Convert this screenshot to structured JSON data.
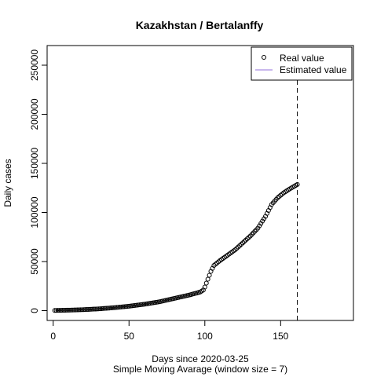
{
  "chart_data": {
    "type": "scatter",
    "title": "Kazakhstan / Bertalanffy",
    "xlabel": "Days since 2020-03-25",
    "subtitle": "Simple Moving Avarage (window size = 7)",
    "ylabel": "Daily cases",
    "xlim": [
      -4,
      198
    ],
    "ylim": [
      -10000,
      270000
    ],
    "x_ticks": [
      0,
      50,
      100,
      150
    ],
    "y_ticks": [
      0,
      50000,
      100000,
      150000,
      200000,
      250000
    ],
    "vline_x": 161,
    "legend_position": "top-right",
    "legend": {
      "real_label": "Real value",
      "estimated_label": "Estimated value",
      "estimated_color": "#9370DB"
    },
    "series": [
      {
        "name": "Real value",
        "marker": "open-circle",
        "anchors": [
          [
            1,
            200
          ],
          [
            10,
            500
          ],
          [
            20,
            1000
          ],
          [
            30,
            1800
          ],
          [
            40,
            3000
          ],
          [
            50,
            4500
          ],
          [
            60,
            6500
          ],
          [
            70,
            9000
          ],
          [
            80,
            12500
          ],
          [
            90,
            16000
          ],
          [
            97,
            19000
          ],
          [
            99,
            21000
          ],
          [
            100,
            24000
          ],
          [
            102,
            32000
          ],
          [
            104,
            40000
          ],
          [
            106,
            46000
          ],
          [
            110,
            51000
          ],
          [
            120,
            62000
          ],
          [
            130,
            76000
          ],
          [
            135,
            84000
          ],
          [
            140,
            96000
          ],
          [
            144,
            108000
          ],
          [
            148,
            115000
          ],
          [
            152,
            120000
          ],
          [
            156,
            124000
          ],
          [
            161,
            128500
          ]
        ]
      }
    ]
  }
}
